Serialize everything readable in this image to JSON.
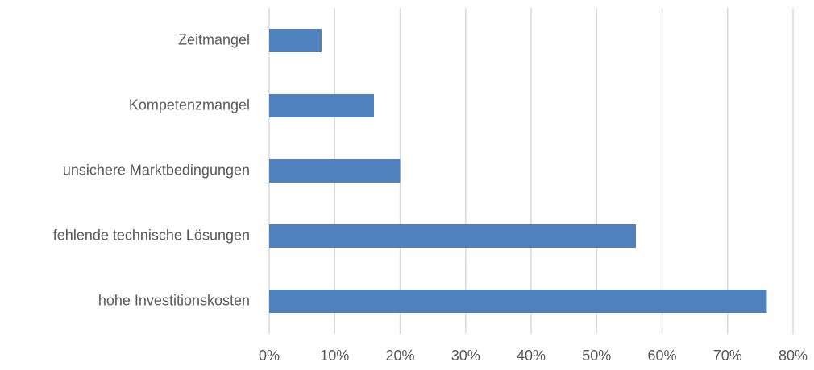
{
  "chart_data": {
    "type": "bar",
    "orientation": "horizontal",
    "categories": [
      "Zeitmangel",
      "Kompetenzmangel",
      "unsichere Marktbedingungen",
      "fehlende technische Lösungen",
      "hohe Investitionskosten"
    ],
    "values": [
      8,
      16,
      20,
      56,
      76
    ],
    "color": "#4e81bd",
    "xlim": [
      0,
      80
    ],
    "xticks": [
      {
        "value": 0,
        "label": "0%"
      },
      {
        "value": 10,
        "label": "10%"
      },
      {
        "value": 20,
        "label": "20%"
      },
      {
        "value": 30,
        "label": "30%"
      },
      {
        "value": 40,
        "label": "40%"
      },
      {
        "value": 50,
        "label": "50%"
      },
      {
        "value": 60,
        "label": "60%"
      },
      {
        "value": 70,
        "label": "70%"
      },
      {
        "value": 80,
        "label": "80%"
      }
    ],
    "grid": true
  }
}
